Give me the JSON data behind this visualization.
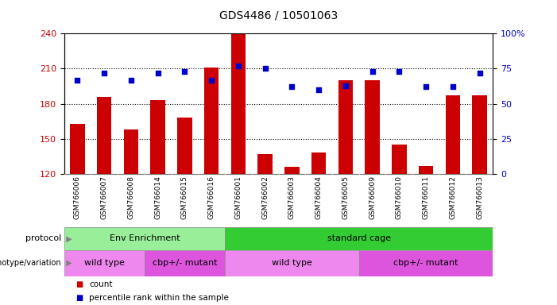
{
  "title": "GDS4486 / 10501063",
  "samples": [
    "GSM766006",
    "GSM766007",
    "GSM766008",
    "GSM766014",
    "GSM766015",
    "GSM766016",
    "GSM766001",
    "GSM766002",
    "GSM766003",
    "GSM766004",
    "GSM766005",
    "GSM766009",
    "GSM766010",
    "GSM766011",
    "GSM766012",
    "GSM766013"
  ],
  "count_values": [
    163,
    186,
    158,
    183,
    168,
    211,
    240,
    137,
    126,
    138,
    200,
    200,
    145,
    127,
    187,
    187
  ],
  "percentile_values": [
    67,
    72,
    67,
    72,
    73,
    67,
    77,
    75,
    62,
    60,
    63,
    73,
    73,
    62,
    62,
    72
  ],
  "ylim_left": [
    120,
    240
  ],
  "ylim_right": [
    0,
    100
  ],
  "yticks_left": [
    120,
    150,
    180,
    210,
    240
  ],
  "yticks_right": [
    0,
    25,
    50,
    75,
    100
  ],
  "bar_color": "#cc0000",
  "dot_color": "#0000cc",
  "bar_bottom": 120,
  "grid_lines": [
    150,
    180,
    210
  ],
  "protocol_groups": [
    {
      "label": "Env Enrichment",
      "start": 0,
      "end": 6,
      "color": "#99ee99"
    },
    {
      "label": "standard cage",
      "start": 6,
      "end": 16,
      "color": "#33cc33"
    }
  ],
  "genotype_groups": [
    {
      "label": "wild type",
      "start": 0,
      "end": 3,
      "color": "#ee88ee"
    },
    {
      "label": "cbp+/- mutant",
      "start": 3,
      "end": 6,
      "color": "#dd55dd"
    },
    {
      "label": "wild type",
      "start": 6,
      "end": 11,
      "color": "#ee88ee"
    },
    {
      "label": "cbp+/- mutant",
      "start": 11,
      "end": 16,
      "color": "#dd55dd"
    }
  ],
  "bg_color": "#ffffff",
  "gray_bg": "#d0d0d0",
  "tick_label_fontsize": 6.5,
  "title_fontsize": 10
}
